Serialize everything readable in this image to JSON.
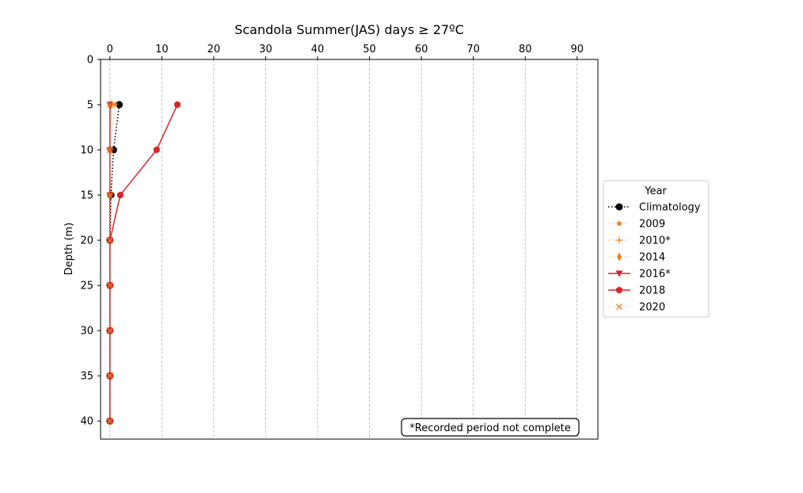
{
  "chart_data": {
    "type": "line",
    "title": "Scandola Summer(JAS) days ≥ 27ºC",
    "xlabel": "",
    "ylabel": "Depth (m)",
    "xlim": [
      -1.8,
      94
    ],
    "ylim": [
      42,
      0
    ],
    "x_axis_position": "top",
    "y_inverted": true,
    "x_ticks": [
      0,
      10,
      20,
      30,
      40,
      50,
      60,
      70,
      80,
      90
    ],
    "y_ticks": [
      0,
      5,
      10,
      15,
      20,
      25,
      30,
      35,
      40
    ],
    "grid": {
      "x": true,
      "y": false,
      "style": "dashed"
    },
    "legend": {
      "title": "Year",
      "placement": "right-outside"
    },
    "annotation": "*Recorded period not complete",
    "series": [
      {
        "name": "Climatology",
        "color": "#000000",
        "line": "dotted",
        "line_width": 1.6,
        "marker": "circle",
        "points": [
          [
            1.8,
            5
          ],
          [
            0.7,
            10
          ],
          [
            0.2,
            15
          ],
          [
            0,
            20
          ],
          [
            0,
            25
          ],
          [
            0,
            30
          ],
          [
            0,
            35
          ],
          [
            0,
            40
          ]
        ]
      },
      {
        "name": "2009",
        "color": "#f07f1e",
        "line": "dotted",
        "line_width": 0.6,
        "marker": "star",
        "points": [
          [
            1.0,
            5
          ],
          [
            0,
            10
          ],
          [
            0,
            15
          ],
          [
            0,
            20
          ],
          [
            0,
            25
          ],
          [
            0,
            30
          ],
          [
            0,
            35
          ],
          [
            0,
            40
          ]
        ]
      },
      {
        "name": "2010*",
        "color": "#f07f1e",
        "line": "dotted",
        "line_width": 0.6,
        "marker": "plus",
        "points": [
          [
            0.3,
            5
          ],
          [
            0,
            10
          ],
          [
            0,
            15
          ],
          [
            0,
            20
          ],
          [
            0,
            25
          ],
          [
            0,
            30
          ],
          [
            0,
            35
          ],
          [
            0,
            40
          ]
        ]
      },
      {
        "name": "2014",
        "color": "#f07f1e",
        "line": "dotted",
        "line_width": 0.6,
        "marker": "diamond",
        "points": [
          [
            0.2,
            5
          ],
          [
            0,
            10
          ],
          [
            0,
            15
          ],
          [
            0,
            20
          ],
          [
            0,
            25
          ],
          [
            0,
            30
          ],
          [
            0,
            35
          ],
          [
            0,
            40
          ]
        ]
      },
      {
        "name": "2016*",
        "color": "#d62728",
        "line": "solid",
        "line_width": 1.5,
        "marker": "triangle-down",
        "points": [
          [
            0,
            5
          ],
          [
            0,
            10
          ],
          [
            0,
            15
          ],
          [
            0,
            20
          ],
          [
            0,
            25
          ],
          [
            0,
            30
          ],
          [
            0,
            35
          ],
          [
            0,
            40
          ]
        ]
      },
      {
        "name": "2018",
        "color": "#d62728",
        "line": "solid",
        "line_width": 1.5,
        "marker": "hexagon",
        "points": [
          [
            13,
            5
          ],
          [
            9,
            10
          ],
          [
            2,
            15
          ],
          [
            0,
            20
          ],
          [
            0,
            25
          ],
          [
            0,
            30
          ],
          [
            0,
            35
          ],
          [
            0,
            40
          ]
        ]
      },
      {
        "name": "2020",
        "color": "#f07f1e",
        "line": "dotted",
        "line_width": 0.6,
        "marker": "x",
        "points": [
          [
            0,
            5
          ],
          [
            0,
            10
          ],
          [
            0,
            15
          ],
          [
            0,
            20
          ],
          [
            0,
            25
          ],
          [
            0,
            30
          ],
          [
            0,
            35
          ],
          [
            0,
            40
          ]
        ]
      }
    ]
  }
}
